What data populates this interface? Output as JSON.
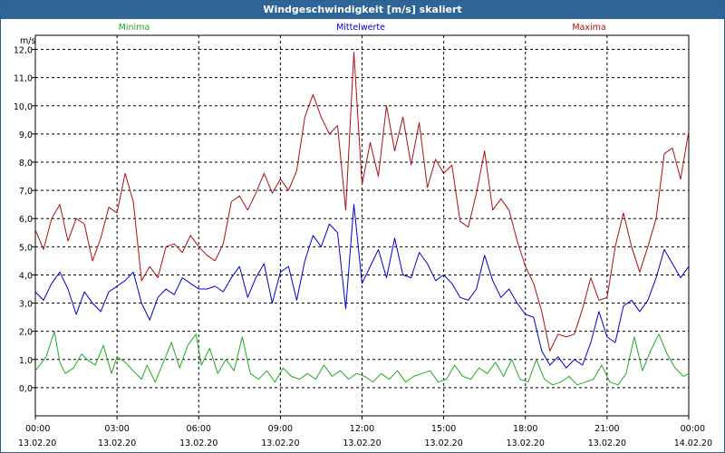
{
  "window": {
    "title": "Windgeschwindigkeit [m/s] skaliert"
  },
  "chart_data": {
    "type": "line",
    "ylabel": "m/s",
    "ylim": [
      -1.0,
      12.5
    ],
    "yticks": [
      0.0,
      1.0,
      2.0,
      3.0,
      4.0,
      5.0,
      6.0,
      7.0,
      8.0,
      9.0,
      10.0,
      11.0,
      12.0
    ],
    "ytick_labels": [
      "0,0",
      "1,0",
      "2,0",
      "3,0",
      "4,0",
      "5,0",
      "6,0",
      "7,0",
      "8,0",
      "9,0",
      "10,0",
      "11,0",
      "12,0"
    ],
    "xlim": [
      0,
      24
    ],
    "xticks": [
      {
        "time": "00:00",
        "date": "13.02.20"
      },
      {
        "time": "03:00",
        "date": "13.02.20"
      },
      {
        "time": "06:00",
        "date": "13.02.20"
      },
      {
        "time": "09:00",
        "date": "13.02.20"
      },
      {
        "time": "12:00",
        "date": "13.02.20"
      },
      {
        "time": "15:00",
        "date": "13.02.20"
      },
      {
        "time": "18:00",
        "date": "13.02.20"
      },
      {
        "time": "21:00",
        "date": "13.02.20"
      },
      {
        "time": "00:00",
        "date": "14.02.20"
      }
    ],
    "grid": true,
    "legend_position": "top",
    "series": [
      {
        "name": "Minima",
        "color": "#22aa22",
        "x": [
          0,
          0.4,
          0.7,
          0.9,
          1.1,
          1.4,
          1.7,
          1.9,
          2.2,
          2.5,
          2.8,
          3.0,
          3.3,
          3.6,
          3.9,
          4.1,
          4.4,
          4.7,
          5.0,
          5.3,
          5.6,
          5.9,
          6.1,
          6.4,
          6.7,
          7.0,
          7.3,
          7.6,
          7.9,
          8.2,
          8.5,
          8.8,
          9.1,
          9.4,
          9.7,
          10.0,
          10.3,
          10.6,
          10.9,
          11.2,
          11.5,
          11.8,
          12.1,
          12.4,
          12.7,
          13.0,
          13.3,
          13.6,
          13.9,
          14.2,
          14.5,
          14.8,
          15.1,
          15.4,
          15.7,
          16.0,
          16.3,
          16.6,
          16.9,
          17.2,
          17.5,
          17.8,
          18.1,
          18.4,
          18.7,
          19.0,
          19.3,
          19.6,
          19.9,
          20.2,
          20.5,
          20.8,
          21.1,
          21.4,
          21.7,
          22.0,
          22.3,
          22.6,
          22.9,
          23.2,
          23.5,
          23.8,
          24.0
        ],
        "values": [
          0.6,
          1.1,
          2.0,
          0.9,
          0.5,
          0.7,
          1.2,
          1.0,
          0.8,
          1.5,
          0.5,
          1.1,
          0.9,
          0.6,
          0.3,
          0.8,
          0.2,
          0.9,
          1.6,
          0.7,
          1.5,
          1.9,
          0.8,
          1.4,
          0.5,
          1.0,
          0.6,
          1.8,
          0.5,
          0.3,
          0.6,
          0.2,
          0.7,
          0.4,
          0.3,
          0.5,
          0.3,
          0.8,
          0.4,
          0.6,
          0.3,
          0.5,
          0.4,
          0.2,
          0.5,
          0.3,
          0.6,
          0.2,
          0.4,
          0.5,
          0.6,
          0.2,
          0.3,
          0.8,
          0.4,
          0.3,
          0.7,
          0.5,
          0.9,
          0.4,
          1.0,
          0.3,
          0.2,
          1.0,
          0.3,
          0.1,
          0.2,
          0.4,
          0.1,
          0.2,
          0.3,
          0.8,
          0.2,
          0.1,
          0.5,
          1.8,
          0.6,
          1.3,
          1.9,
          1.2,
          0.7,
          0.4,
          0.5
        ]
      },
      {
        "name": "Mittelwerte",
        "color": "#0000cc",
        "x": [
          0,
          0.3,
          0.6,
          0.9,
          1.2,
          1.5,
          1.8,
          2.1,
          2.4,
          2.7,
          3.0,
          3.3,
          3.6,
          3.9,
          4.2,
          4.5,
          4.8,
          5.1,
          5.4,
          5.7,
          6.0,
          6.3,
          6.6,
          6.9,
          7.2,
          7.5,
          7.8,
          8.1,
          8.4,
          8.7,
          9.0,
          9.3,
          9.6,
          9.9,
          10.2,
          10.5,
          10.8,
          11.1,
          11.4,
          11.7,
          12.0,
          12.3,
          12.6,
          12.9,
          13.2,
          13.5,
          13.8,
          14.1,
          14.4,
          14.7,
          15.0,
          15.3,
          15.6,
          15.9,
          16.2,
          16.5,
          16.8,
          17.1,
          17.4,
          17.7,
          18.0,
          18.3,
          18.6,
          18.9,
          19.2,
          19.5,
          19.8,
          20.1,
          20.4,
          20.7,
          21.0,
          21.3,
          21.6,
          21.9,
          22.2,
          22.5,
          22.8,
          23.1,
          23.4,
          23.7,
          24.0
        ],
        "values": [
          3.4,
          3.1,
          3.7,
          4.1,
          3.5,
          2.6,
          3.4,
          3.0,
          2.7,
          3.4,
          3.6,
          3.8,
          4.1,
          3.0,
          2.4,
          3.2,
          3.5,
          3.3,
          3.9,
          3.7,
          3.5,
          3.5,
          3.6,
          3.4,
          3.9,
          4.3,
          3.2,
          3.9,
          4.4,
          3.0,
          4.1,
          4.3,
          3.1,
          4.5,
          5.4,
          5.0,
          5.8,
          5.5,
          2.8,
          6.5,
          3.7,
          4.3,
          4.9,
          3.9,
          5.3,
          4.0,
          3.9,
          4.8,
          4.4,
          3.8,
          4.0,
          3.7,
          3.2,
          3.1,
          3.5,
          4.7,
          3.8,
          3.2,
          3.5,
          3.0,
          2.6,
          2.5,
          1.3,
          0.8,
          1.1,
          0.7,
          1.0,
          0.8,
          1.6,
          2.7,
          1.8,
          1.6,
          2.9,
          3.1,
          2.7,
          3.1,
          3.9,
          4.9,
          4.4,
          3.9,
          4.3
        ]
      },
      {
        "name": "Maxima",
        "color": "#aa1111",
        "x": [
          0,
          0.3,
          0.6,
          0.9,
          1.2,
          1.5,
          1.8,
          2.1,
          2.4,
          2.7,
          3.0,
          3.3,
          3.6,
          3.9,
          4.2,
          4.5,
          4.8,
          5.1,
          5.4,
          5.7,
          6.0,
          6.3,
          6.6,
          6.9,
          7.2,
          7.5,
          7.8,
          8.1,
          8.4,
          8.7,
          9.0,
          9.3,
          9.6,
          9.9,
          10.2,
          10.5,
          10.8,
          11.1,
          11.4,
          11.7,
          12.0,
          12.3,
          12.6,
          12.9,
          13.2,
          13.5,
          13.8,
          14.1,
          14.4,
          14.7,
          15.0,
          15.3,
          15.6,
          15.9,
          16.2,
          16.5,
          16.8,
          17.1,
          17.4,
          17.7,
          18.0,
          18.3,
          18.6,
          18.9,
          19.2,
          19.5,
          19.8,
          20.1,
          20.4,
          20.7,
          21.0,
          21.3,
          21.6,
          21.9,
          22.2,
          22.5,
          22.8,
          23.1,
          23.4,
          23.7,
          24.0
        ],
        "values": [
          5.6,
          4.9,
          6.0,
          6.5,
          5.2,
          6.0,
          5.8,
          4.5,
          5.3,
          6.4,
          6.2,
          7.6,
          6.6,
          3.8,
          4.3,
          3.9,
          5.0,
          5.1,
          4.8,
          5.4,
          5.0,
          4.7,
          4.5,
          5.1,
          6.6,
          6.8,
          6.3,
          6.9,
          7.6,
          6.9,
          7.4,
          7.0,
          7.7,
          9.6,
          10.4,
          9.6,
          9.0,
          9.3,
          6.3,
          11.9,
          7.2,
          8.7,
          7.5,
          10.0,
          8.4,
          9.6,
          7.9,
          9.4,
          7.1,
          8.1,
          7.6,
          7.9,
          5.9,
          5.7,
          6.9,
          8.4,
          6.3,
          6.7,
          6.3,
          5.2,
          4.3,
          3.7,
          2.7,
          1.3,
          1.9,
          1.8,
          1.9,
          2.8,
          3.9,
          3.1,
          3.2,
          5.0,
          6.2,
          5.0,
          4.1,
          5.0,
          6.0,
          8.3,
          8.5,
          7.4,
          9.1
        ]
      }
    ]
  }
}
